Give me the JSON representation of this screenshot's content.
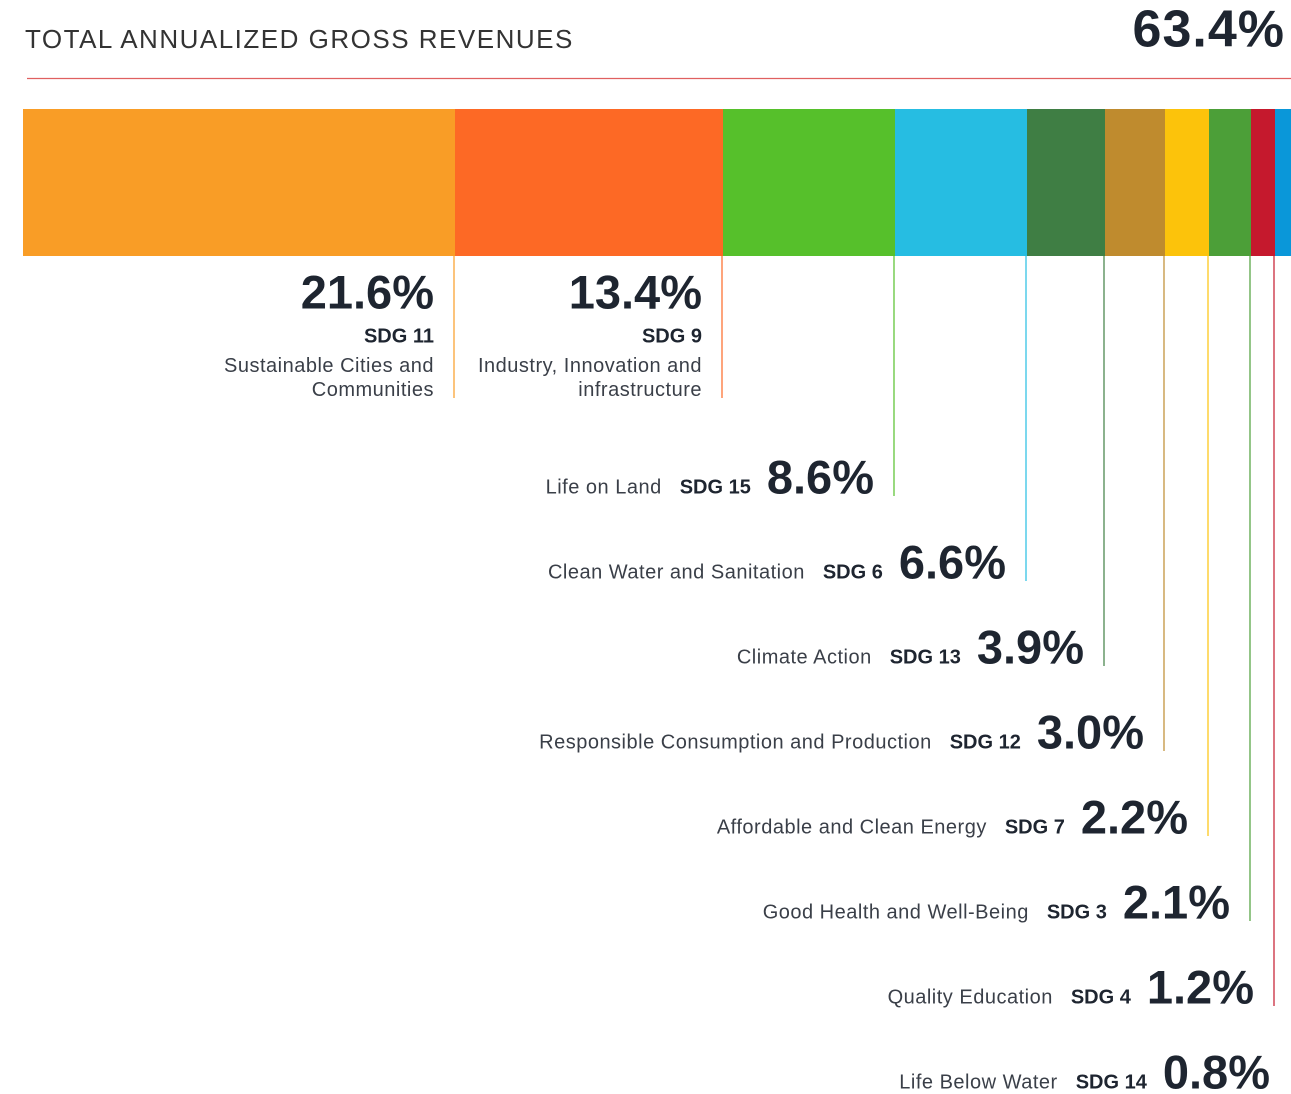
{
  "chart_data": {
    "type": "stacked_bar",
    "title": "TOTAL ANNUALIZED GROSS REVENUES",
    "total": {
      "value": 63.4,
      "label": "63.4%"
    },
    "categories": [
      "Sustainable Cities and Communities",
      "Industry, Innovation and infrastructure",
      "Life on Land",
      "Clean Water and Sanitation",
      "Climate Action",
      "Responsible Consumption and Production",
      "Affordable and Clean Energy",
      "Good Health and Well-Being",
      "Quality Education",
      "Life Below Water"
    ],
    "codes": [
      "SDG 11",
      "SDG 9",
      "SDG 15",
      "SDG 6",
      "SDG 13",
      "SDG 12",
      "SDG 7",
      "SDG 3",
      "SDG 4",
      "SDG 14"
    ],
    "values": [
      21.6,
      13.4,
      8.6,
      6.6,
      3.9,
      3.0,
      2.2,
      2.1,
      1.2,
      0.8
    ],
    "value_labels": [
      "21.6%",
      "13.4%",
      "8.6%",
      "6.6%",
      "3.9%",
      "3.0%",
      "2.2%",
      "2.1%",
      "1.2%",
      "0.8%"
    ],
    "colors": [
      "#F99D26",
      "#FD6925",
      "#56C02B",
      "#26BDE2",
      "#3F7E44",
      "#BF8B2E",
      "#FCC30B",
      "#4C9F38",
      "#C5192D",
      "#0A97D9"
    ]
  }
}
